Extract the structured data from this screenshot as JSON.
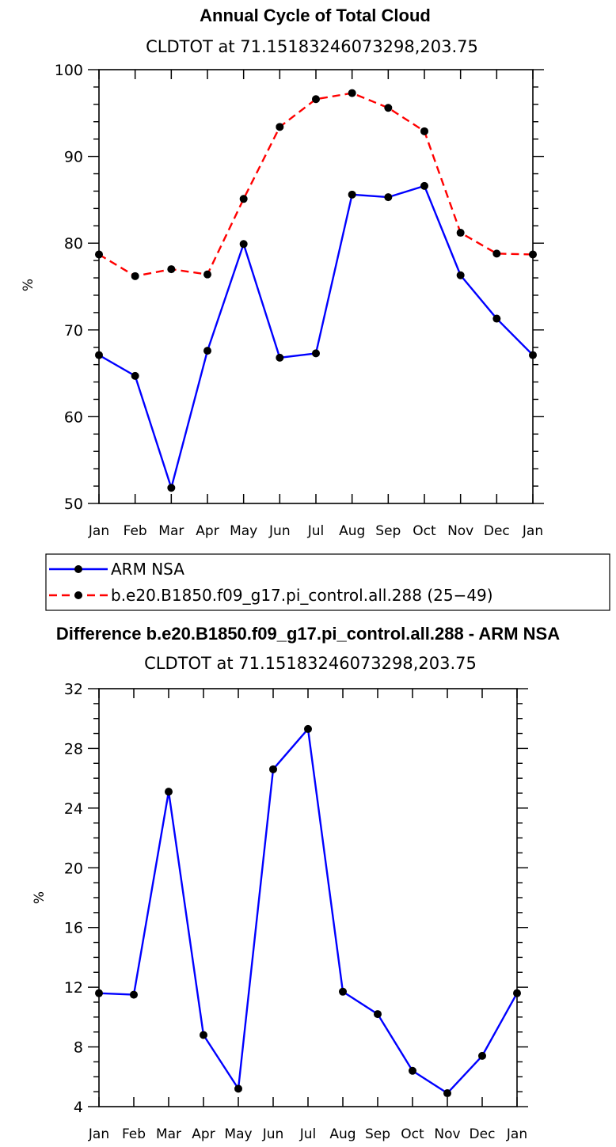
{
  "chart_data": [
    {
      "type": "line",
      "title": "Annual Cycle of Total Cloud",
      "subtitle": "CLDTOT at 71.15183246073298,203.75",
      "xlabel": "",
      "ylabel": "%",
      "categories": [
        "Jan",
        "Feb",
        "Mar",
        "Apr",
        "May",
        "Jun",
        "Jul",
        "Aug",
        "Sep",
        "Oct",
        "Nov",
        "Dec",
        "Jan"
      ],
      "ylim": [
        50,
        100
      ],
      "yticks": [
        50,
        60,
        70,
        80,
        90,
        100
      ],
      "series": [
        {
          "name": "ARM NSA",
          "color": "#0000ff",
          "dashed": false,
          "values": [
            67.1,
            64.7,
            51.8,
            67.6,
            79.9,
            66.8,
            67.3,
            85.6,
            85.3,
            86.6,
            76.3,
            71.3,
            67.1
          ]
        },
        {
          "name": "b.e20.B1850.f09_g17.pi_control.all.288 (25−49)",
          "color": "#ff0000",
          "dashed": true,
          "values": [
            78.7,
            76.2,
            77.0,
            76.4,
            85.1,
            93.4,
            96.6,
            97.3,
            95.6,
            92.9,
            81.2,
            78.8,
            78.7
          ]
        }
      ],
      "legend": {
        "position": "bottom"
      }
    },
    {
      "type": "line",
      "title": "Difference b.e20.B1850.f09_g17.pi_control.all.288 - ARM NSA",
      "subtitle": "CLDTOT at 71.15183246073298,203.75",
      "xlabel": "",
      "ylabel": "%",
      "categories": [
        "Jan",
        "Feb",
        "Mar",
        "Apr",
        "May",
        "Jun",
        "Jul",
        "Aug",
        "Sep",
        "Oct",
        "Nov",
        "Dec",
        "Jan"
      ],
      "ylim": [
        4,
        32
      ],
      "yticks": [
        4,
        8,
        12,
        16,
        20,
        24,
        28,
        32
      ],
      "series": [
        {
          "name": "Difference",
          "color": "#0000ff",
          "dashed": false,
          "values": [
            11.6,
            11.5,
            25.1,
            8.8,
            5.2,
            26.6,
            29.3,
            11.7,
            10.2,
            6.4,
            4.9,
            7.4,
            11.6
          ]
        }
      ]
    }
  ]
}
